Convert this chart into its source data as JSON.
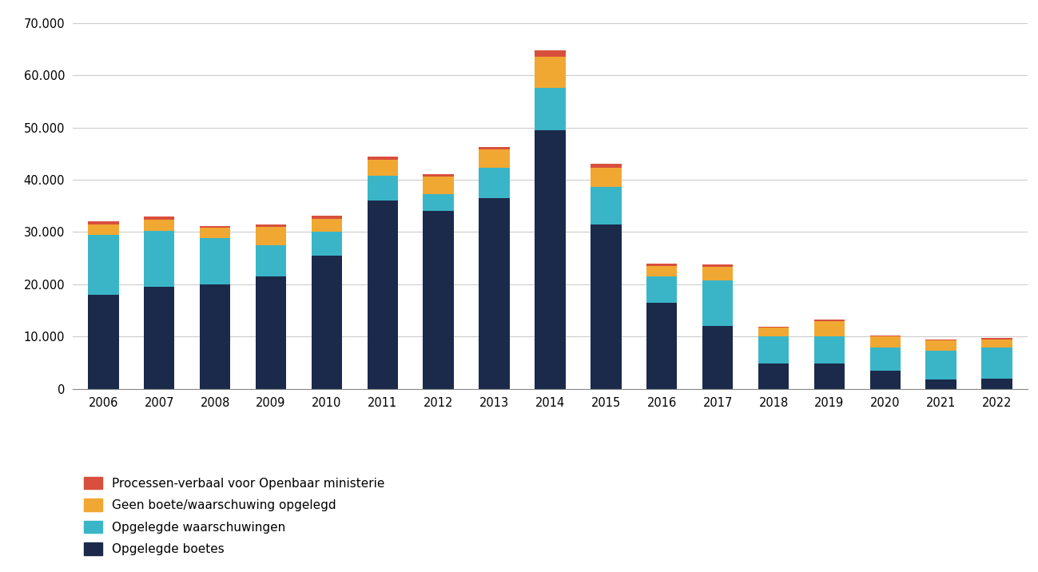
{
  "years": [
    2006,
    2007,
    2008,
    2009,
    2010,
    2011,
    2012,
    2013,
    2014,
    2015,
    2016,
    2017,
    2018,
    2019,
    2020,
    2021,
    2022
  ],
  "opgelegde_boetes": [
    18000,
    19500,
    20000,
    21500,
    25500,
    36000,
    34000,
    36500,
    49500,
    31500,
    16500,
    12000,
    4800,
    4800,
    3500,
    1800,
    2000
  ],
  "opgelegde_waarschuwingen": [
    11500,
    10800,
    8800,
    6000,
    4500,
    4800,
    3300,
    5800,
    8000,
    7200,
    5000,
    8800,
    5200,
    5200,
    4500,
    5500,
    6000
  ],
  "geen_boete": [
    2000,
    2000,
    2000,
    3500,
    2500,
    3000,
    3300,
    3500,
    6000,
    3600,
    2000,
    2500,
    1700,
    3000,
    2000,
    2000,
    1500
  ],
  "processen_verbaal": [
    600,
    700,
    400,
    500,
    600,
    600,
    500,
    500,
    1200,
    800,
    400,
    500,
    200,
    200,
    200,
    200,
    200
  ],
  "color_boetes": "#1b2a4a",
  "color_waarschuwingen": "#3ab5c8",
  "color_geen_boete": "#f0a832",
  "color_processen": "#d94f3d",
  "ylim": [
    0,
    70000
  ],
  "yticks": [
    0,
    10000,
    20000,
    30000,
    40000,
    50000,
    60000,
    70000
  ],
  "legend_labels": [
    "Processen-verbaal voor Openbaar ministerie",
    "Geen boete/waarschuwing opgelegd",
    "Opgelegde waarschuwingen",
    "Opgelegde boetes"
  ],
  "background_color": "#ffffff",
  "bar_width": 0.55
}
